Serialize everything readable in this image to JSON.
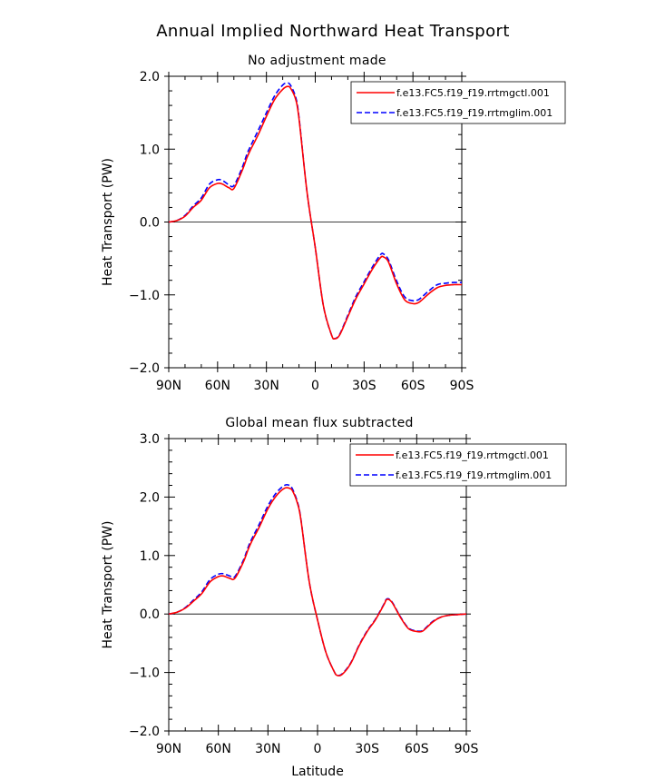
{
  "figure": {
    "title": "Annual Implied Northward Heat Transport"
  },
  "chart_data": [
    {
      "type": "line",
      "title": "No adjustment made",
      "xlabel": "",
      "ylabel": "Heat Transport (PW)",
      "xlim": [
        90,
        -90
      ],
      "ylim": [
        -2.0,
        2.0
      ],
      "x_ticks": [
        90,
        60,
        30,
        0,
        -30,
        -60,
        -90
      ],
      "x_tick_labels": [
        "90N",
        "60N",
        "30N",
        "0",
        "30S",
        "60S",
        "90S"
      ],
      "y_ticks": [
        -2.0,
        -1.0,
        0.0,
        1.0,
        2.0
      ],
      "y_tick_labels": [
        "−2.0",
        "−1.0",
        "0.0",
        "1.0",
        "2.0"
      ],
      "grid": false,
      "zero_line": true,
      "legend_position": "top-right",
      "x": [
        90,
        85,
        80,
        75,
        70,
        65,
        60,
        57,
        53,
        50,
        45,
        42,
        40,
        35,
        30,
        25,
        20,
        17,
        15,
        12,
        10,
        5,
        0,
        -5,
        -10,
        -12,
        -15,
        -20,
        -25,
        -30,
        -35,
        -40,
        -42,
        -45,
        -50,
        -55,
        -60,
        -63,
        -65,
        -70,
        -75,
        -80,
        -85,
        -90
      ],
      "series": [
        {
          "name": "f.e13.FC5.f19_f19.rrtmgctl.001",
          "color": "#ff0000",
          "dash": "solid",
          "values": [
            0.0,
            0.02,
            0.08,
            0.2,
            0.3,
            0.47,
            0.53,
            0.52,
            0.47,
            0.46,
            0.7,
            0.88,
            0.98,
            1.2,
            1.45,
            1.68,
            1.82,
            1.86,
            1.83,
            1.68,
            1.42,
            0.4,
            -0.35,
            -1.15,
            -1.55,
            -1.6,
            -1.55,
            -1.3,
            -1.05,
            -0.85,
            -0.65,
            -0.49,
            -0.48,
            -0.55,
            -0.85,
            -1.07,
            -1.12,
            -1.11,
            -1.08,
            -0.98,
            -0.9,
            -0.87,
            -0.86,
            -0.86
          ]
        },
        {
          "name": "f.e13.FC5.f19_f19.rrtmglim.001",
          "color": "#0000ff",
          "dash": "dashed",
          "values": [
            0.0,
            0.02,
            0.09,
            0.22,
            0.33,
            0.52,
            0.58,
            0.57,
            0.51,
            0.5,
            0.74,
            0.93,
            1.03,
            1.26,
            1.5,
            1.73,
            1.88,
            1.91,
            1.87,
            1.71,
            1.44,
            0.4,
            -0.35,
            -1.15,
            -1.55,
            -1.6,
            -1.54,
            -1.28,
            -1.02,
            -0.82,
            -0.62,
            -0.45,
            -0.44,
            -0.52,
            -0.81,
            -1.03,
            -1.08,
            -1.07,
            -1.04,
            -0.94,
            -0.86,
            -0.84,
            -0.83,
            -0.83
          ]
        }
      ]
    },
    {
      "type": "line",
      "title": "Global mean flux subtracted",
      "xlabel": "Latitude",
      "ylabel": "Heat Transport (PW)",
      "xlim": [
        90,
        -90
      ],
      "ylim": [
        -2.0,
        3.0
      ],
      "x_ticks": [
        90,
        60,
        30,
        0,
        -30,
        -60,
        -90
      ],
      "x_tick_labels": [
        "90N",
        "60N",
        "30N",
        "0",
        "30S",
        "60S",
        "90S"
      ],
      "y_ticks": [
        -2.0,
        -1.0,
        0.0,
        1.0,
        2.0,
        3.0
      ],
      "y_tick_labels": [
        "−2.0",
        "−1.0",
        "0.0",
        "1.0",
        "2.0",
        "3.0"
      ],
      "grid": false,
      "zero_line": true,
      "legend_position": "top-right",
      "x": [
        90,
        85,
        80,
        75,
        70,
        65,
        60,
        57,
        53,
        50,
        45,
        42,
        40,
        35,
        30,
        25,
        20,
        17,
        15,
        12,
        10,
        5,
        0,
        -5,
        -10,
        -12,
        -15,
        -20,
        -25,
        -30,
        -35,
        -40,
        -42,
        -45,
        -50,
        -55,
        -60,
        -63,
        -65,
        -70,
        -75,
        -80,
        -85,
        -90
      ],
      "series": [
        {
          "name": "f.e13.FC5.f19_f19.rrtmgctl.001",
          "color": "#ff0000",
          "dash": "solid",
          "values": [
            0.0,
            0.03,
            0.1,
            0.22,
            0.35,
            0.55,
            0.64,
            0.65,
            0.61,
            0.61,
            0.88,
            1.1,
            1.23,
            1.5,
            1.8,
            2.02,
            2.15,
            2.15,
            2.1,
            1.88,
            1.6,
            0.55,
            -0.1,
            -0.65,
            -0.98,
            -1.05,
            -1.03,
            -0.85,
            -0.55,
            -0.3,
            -0.1,
            0.15,
            0.25,
            0.2,
            -0.05,
            -0.25,
            -0.3,
            -0.3,
            -0.26,
            -0.13,
            -0.05,
            -0.02,
            -0.01,
            0.0
          ]
        },
        {
          "name": "f.e13.FC5.f19_f19.rrtmglim.001",
          "color": "#0000ff",
          "dash": "dashed",
          "values": [
            0.0,
            0.03,
            0.11,
            0.24,
            0.38,
            0.59,
            0.68,
            0.69,
            0.65,
            0.64,
            0.91,
            1.14,
            1.27,
            1.55,
            1.85,
            2.07,
            2.2,
            2.2,
            2.13,
            1.9,
            1.61,
            0.55,
            -0.1,
            -0.65,
            -0.98,
            -1.05,
            -1.02,
            -0.84,
            -0.54,
            -0.29,
            -0.09,
            0.16,
            0.26,
            0.21,
            -0.04,
            -0.24,
            -0.29,
            -0.29,
            -0.25,
            -0.12,
            -0.05,
            -0.02,
            -0.01,
            0.0
          ]
        }
      ]
    }
  ]
}
